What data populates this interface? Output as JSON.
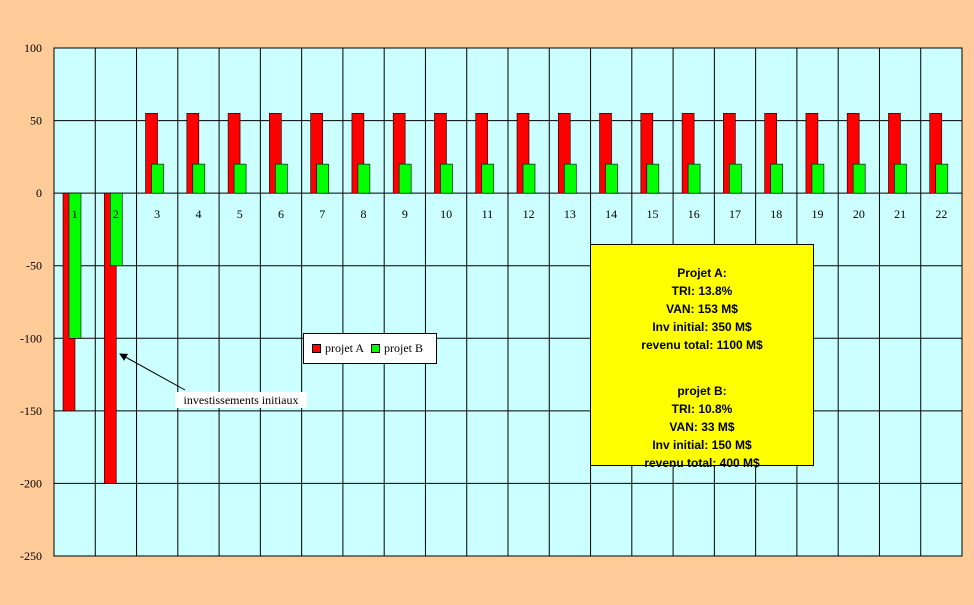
{
  "chart_data": {
    "type": "bar",
    "categories": [
      "1",
      "2",
      "3",
      "4",
      "5",
      "6",
      "7",
      "8",
      "9",
      "10",
      "11",
      "12",
      "13",
      "14",
      "15",
      "16",
      "17",
      "18",
      "19",
      "20",
      "21",
      "22"
    ],
    "series": [
      {
        "name": "projet A",
        "color": "#ff0000",
        "values": [
          -150,
          -200,
          55,
          55,
          55,
          55,
          55,
          55,
          55,
          55,
          55,
          55,
          55,
          55,
          55,
          55,
          55,
          55,
          55,
          55,
          55,
          55
        ]
      },
      {
        "name": "projet B",
        "color": "#00ff00",
        "values": [
          -100,
          -50,
          20,
          20,
          20,
          20,
          20,
          20,
          20,
          20,
          20,
          20,
          20,
          20,
          20,
          20,
          20,
          20,
          20,
          20,
          20,
          20
        ]
      }
    ],
    "ylim": [
      -250,
      100
    ],
    "yticks": [
      100,
      50,
      0,
      -50,
      -100,
      -150,
      -200,
      -250
    ],
    "grid": true,
    "plot_color": "#ccffff",
    "legend_position": "center-left",
    "annotation": "investissements initiaux"
  },
  "info_box": {
    "a_title": "Projet A:",
    "a_tri": "TRI: 13.8%",
    "a_van": "VAN: 153 M$",
    "a_inv": "Inv initial: 350 M$",
    "a_rev": "revenu total: 1100 M$",
    "b_title": "projet B:",
    "b_tri": "TRI:  10.8%",
    "b_van": "VAN: 33 M$",
    "b_inv": "Inv initial: 150 M$",
    "b_rev": "revenu total: 400 M$"
  }
}
